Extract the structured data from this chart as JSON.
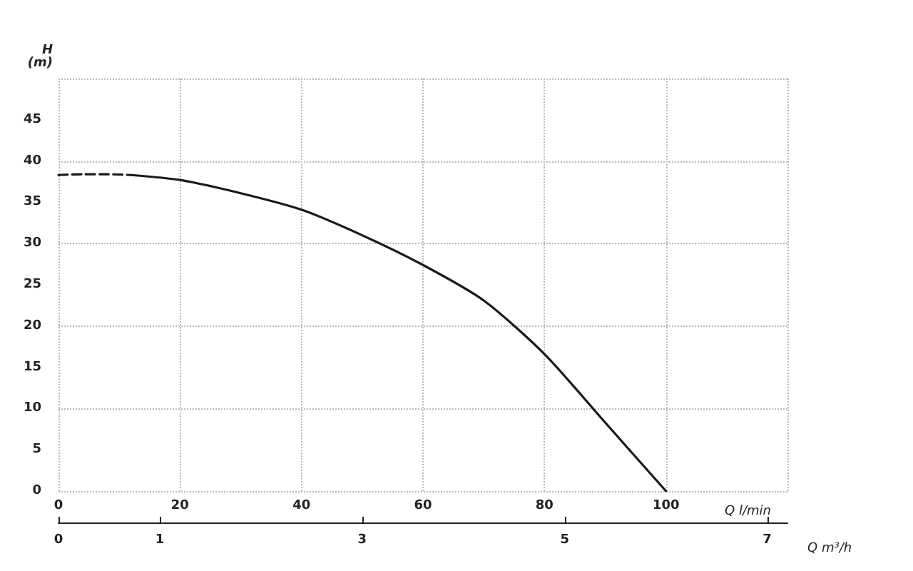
{
  "chart_data": {
    "type": "line",
    "xlabel": "Q l/min",
    "x2label": "Q m³/h",
    "ylabel": "H (m)",
    "series": [
      {
        "color": "#1a1a1a",
        "line_style": "dashed",
        "x": [
          0,
          4,
          8,
          12
        ],
        "values": [
          38.3,
          38.4,
          38.4,
          38.3
        ]
      },
      {
        "color": "#1a1a1a",
        "line_style": "solid",
        "x": [
          12,
          20,
          30,
          40,
          50,
          60,
          70,
          80,
          90,
          100
        ],
        "values": [
          38.3,
          37.7,
          36.1,
          34.1,
          31,
          27.4,
          23.1,
          16.6,
          8.3,
          0
        ]
      }
    ],
    "xlim": [
      0,
      120
    ],
    "xticks": [
      0,
      20,
      40,
      60,
      80,
      100
    ],
    "x2lim": [
      0,
      7.2
    ],
    "x2ticks": [
      0,
      1,
      3,
      5,
      7
    ],
    "ylim": [
      0,
      50
    ],
    "yticks": [
      0,
      5,
      10,
      15,
      20,
      25,
      30,
      35,
      40,
      45
    ],
    "grid": true,
    "marker": "none"
  }
}
